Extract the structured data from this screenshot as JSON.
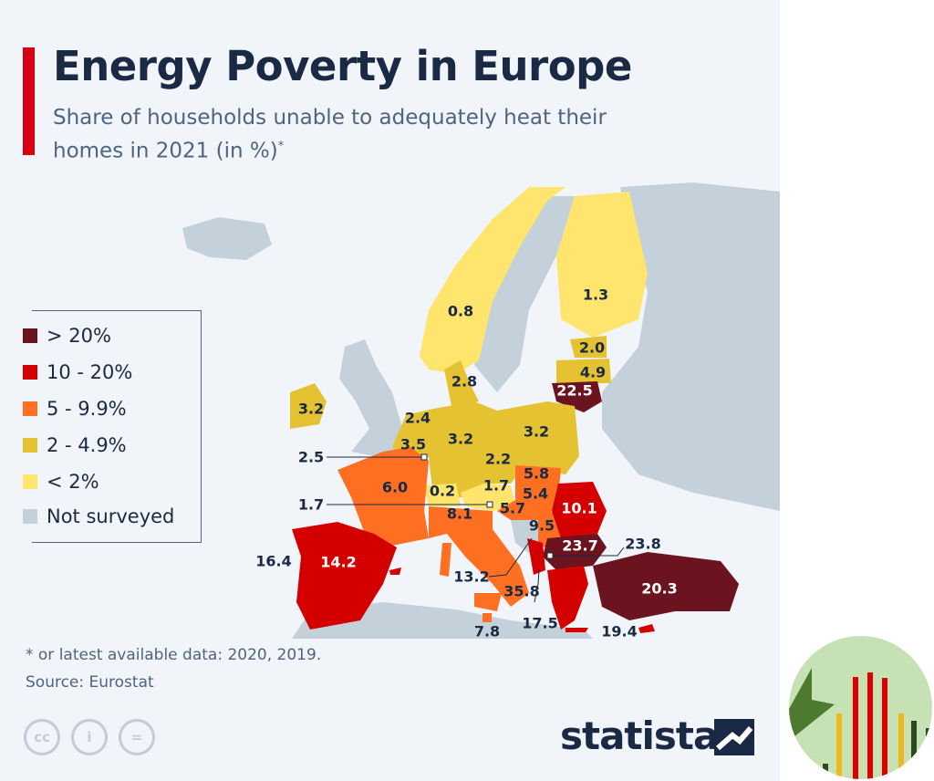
{
  "header": {
    "title": "Energy Poverty in Europe",
    "subtitle": "Share of households unable to adequately heat their homes in 2021 (in %)",
    "subtitle_mark": "*"
  },
  "colors": {
    "gt20": "#6b1420",
    "10_20": "#d40000",
    "5_10": "#ff6f22",
    "2_5": "#e5c232",
    "lt2": "#ffe46e",
    "not_surveyed": "#c5d1da",
    "accent": "#d90012"
  },
  "legend": [
    {
      "label": "> 20%",
      "color": "#6b1420"
    },
    {
      "label": "10 - 20%",
      "color": "#d40000"
    },
    {
      "label": "5 - 9.9%",
      "color": "#ff6f22"
    },
    {
      "label": "2 - 4.9%",
      "color": "#e5c232"
    },
    {
      "label": "< 2%",
      "color": "#ffe46e"
    },
    {
      "label": "Not surveyed",
      "color": "#c5d1da"
    }
  ],
  "map_values": [
    {
      "country": "Norway",
      "value": "0.8"
    },
    {
      "country": "Finland",
      "value": "1.3"
    },
    {
      "country": "Estonia",
      "value": "2.0"
    },
    {
      "country": "Latvia",
      "value": "4.9"
    },
    {
      "country": "Lithuania",
      "value": "22.5"
    },
    {
      "country": "Denmark",
      "value": "2.8"
    },
    {
      "country": "Ireland",
      "value": "3.2"
    },
    {
      "country": "Netherlands",
      "value": "2.4"
    },
    {
      "country": "Belgium",
      "value": "3.5"
    },
    {
      "country": "Luxembourg",
      "value": "2.5"
    },
    {
      "country": "Germany",
      "value": "3.2"
    },
    {
      "country": "Poland",
      "value": "3.2"
    },
    {
      "country": "Czechia",
      "value": "2.2"
    },
    {
      "country": "Slovakia",
      "value": "5.8"
    },
    {
      "country": "Hungary",
      "value": "5.4"
    },
    {
      "country": "Austria",
      "value": "1.7"
    },
    {
      "country": "Slovenia",
      "value": "1.7"
    },
    {
      "country": "Switzerland",
      "value": "0.2"
    },
    {
      "country": "France",
      "value": "6.0"
    },
    {
      "country": "Croatia",
      "value": "5.7"
    },
    {
      "country": "Italy",
      "value": "8.1"
    },
    {
      "country": "Serbia",
      "value": "9.5"
    },
    {
      "country": "Romania",
      "value": "10.1"
    },
    {
      "country": "Bulgaria",
      "value": "23.7"
    },
    {
      "country": "North Macedonia",
      "value": "23.8"
    },
    {
      "country": "Montenegro",
      "value": "13.2"
    },
    {
      "country": "Albania",
      "value": "35.8"
    },
    {
      "country": "Spain",
      "value": "14.2"
    },
    {
      "country": "Portugal",
      "value": "16.4"
    },
    {
      "country": "Malta",
      "value": "7.8"
    },
    {
      "country": "Greece",
      "value": "17.5"
    },
    {
      "country": "Cyprus",
      "value": "19.4"
    },
    {
      "country": "Turkey",
      "value": "20.3"
    }
  ],
  "footnote": "* or latest available data: 2020, 2019.",
  "source": "Source: Eurostat",
  "license_icons": [
    "cc",
    "i",
    "="
  ],
  "brand": "statista"
}
